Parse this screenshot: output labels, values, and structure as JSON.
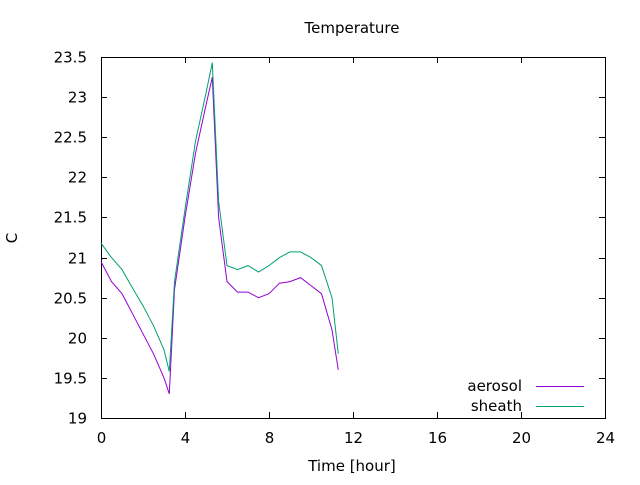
{
  "chart_data": {
    "type": "line",
    "title": "Temperature",
    "xlabel": "Time [hour]",
    "ylabel": "C",
    "xlim": [
      0,
      24
    ],
    "ylim": [
      19,
      23.5
    ],
    "xticks": [
      0,
      4,
      8,
      12,
      16,
      20,
      24
    ],
    "yticks": [
      19,
      19.5,
      20,
      20.5,
      21,
      21.5,
      22,
      22.5,
      23,
      23.5
    ],
    "grid": false,
    "legend_position": "bottom-right",
    "series": [
      {
        "name": "aerosol",
        "color": "#9400d3",
        "x": [
          0,
          0.5,
          1,
          1.5,
          2,
          2.5,
          3,
          3.25,
          3.5,
          4,
          4.5,
          5,
          5.3,
          5.6,
          6,
          6.5,
          7,
          7.5,
          8,
          8.5,
          9,
          9.5,
          10,
          10.5,
          11,
          11.3
        ],
        "y": [
          20.95,
          20.7,
          20.55,
          20.3,
          20.05,
          19.8,
          19.5,
          19.3,
          20.6,
          21.5,
          22.3,
          22.9,
          23.25,
          21.5,
          20.7,
          20.57,
          20.57,
          20.5,
          20.55,
          20.68,
          20.7,
          20.75,
          20.65,
          20.55,
          20.1,
          19.6
        ]
      },
      {
        "name": "sheath",
        "color": "#009e73",
        "x": [
          0,
          0.5,
          1,
          1.5,
          2,
          2.5,
          3,
          3.25,
          3.5,
          4,
          4.5,
          5,
          5.3,
          5.6,
          6,
          6.5,
          7,
          7.5,
          8,
          8.5,
          9,
          9.5,
          10,
          10.5,
          11,
          11.3
        ],
        "y": [
          21.18,
          21.0,
          20.85,
          20.62,
          20.4,
          20.15,
          19.85,
          19.58,
          20.7,
          21.6,
          22.45,
          23.05,
          23.43,
          21.7,
          20.9,
          20.85,
          20.9,
          20.82,
          20.9,
          21.0,
          21.07,
          21.07,
          21.0,
          20.9,
          20.5,
          19.8
        ]
      }
    ]
  }
}
